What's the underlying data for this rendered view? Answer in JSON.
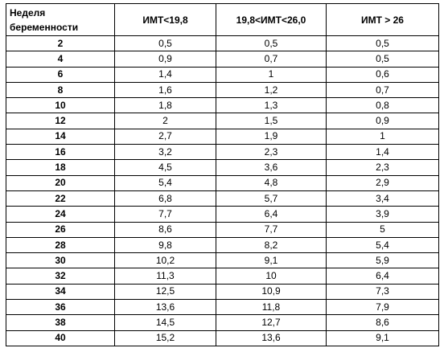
{
  "table": {
    "headers": {
      "week_line1": "Неделя",
      "week_line2": "беременности",
      "col1": "ИМТ<19,8",
      "col2": "19,8<ИМТ<26,0",
      "col3": "ИМТ > 26"
    },
    "rows": [
      [
        "2",
        "0,5",
        "0,5",
        "0,5"
      ],
      [
        "4",
        "0,9",
        "0,7",
        "0,5"
      ],
      [
        "6",
        "1,4",
        "1",
        "0,6"
      ],
      [
        "8",
        "1,6",
        "1,2",
        "0,7"
      ],
      [
        "10",
        "1,8",
        "1,3",
        "0,8"
      ],
      [
        "12",
        "2",
        "1,5",
        "0,9"
      ],
      [
        "14",
        "2,7",
        "1,9",
        "1"
      ],
      [
        "16",
        "3,2",
        "2,3",
        "1,4"
      ],
      [
        "18",
        "4,5",
        "3,6",
        "2,3"
      ],
      [
        "20",
        "5,4",
        "4,8",
        "2,9"
      ],
      [
        "22",
        "6,8",
        "5,7",
        "3,4"
      ],
      [
        "24",
        "7,7",
        "6,4",
        "3,9"
      ],
      [
        "26",
        "8,6",
        "7,7",
        "5"
      ],
      [
        "28",
        "9,8",
        "8,2",
        "5,4"
      ],
      [
        "30",
        "10,2",
        "9,1",
        "5,9"
      ],
      [
        "32",
        "11,3",
        "10",
        "6,4"
      ],
      [
        "34",
        "12,5",
        "10,9",
        "7,3"
      ],
      [
        "36",
        "13,6",
        "11,8",
        "7,9"
      ],
      [
        "38",
        "14,5",
        "12,7",
        "8,6"
      ],
      [
        "40",
        "15,2",
        "13,6",
        "9,1"
      ]
    ]
  }
}
